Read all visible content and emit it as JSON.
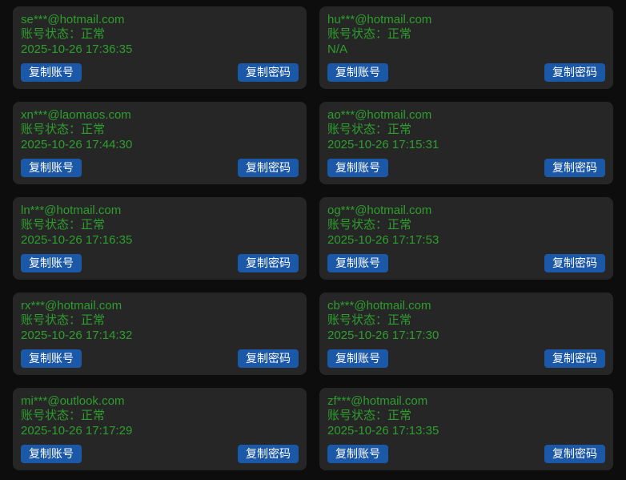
{
  "theme": {
    "page_background": "#0d0d0d",
    "card_background": "#262626",
    "text_green": "#2e9e2e",
    "button_blue": "#1b58a8",
    "button_text": "#ffffff"
  },
  "buttons": {
    "copy_account": "复制账号",
    "copy_password": "复制密码"
  },
  "cards": [
    {
      "email": "se***@hotmail.com",
      "status": "账号状态：正常",
      "time": "2025-10-26 17:36:35"
    },
    {
      "email": "hu***@hotmail.com",
      "status": "账号状态：正常",
      "time": "N/A"
    },
    {
      "email": "xn***@laomaos.com",
      "status": "账号状态：正常",
      "time": "2025-10-26 17:44:30"
    },
    {
      "email": "ao***@hotmail.com",
      "status": "账号状态：正常",
      "time": "2025-10-26 17:15:31"
    },
    {
      "email": "ln***@hotmail.com",
      "status": "账号状态：正常",
      "time": "2025-10-26 17:16:35"
    },
    {
      "email": "og***@hotmail.com",
      "status": "账号状态：正常",
      "time": "2025-10-26 17:17:53"
    },
    {
      "email": "rx***@hotmail.com",
      "status": "账号状态：正常",
      "time": "2025-10-26 17:14:32"
    },
    {
      "email": "cb***@hotmail.com",
      "status": "账号状态：正常",
      "time": "2025-10-26 17:17:30"
    },
    {
      "email": "mi***@outlook.com",
      "status": "账号状态：正常",
      "time": "2025-10-26 17:17:29"
    },
    {
      "email": "zf***@hotmail.com",
      "status": "账号状态：正常",
      "time": "2025-10-26 17:13:35"
    }
  ]
}
